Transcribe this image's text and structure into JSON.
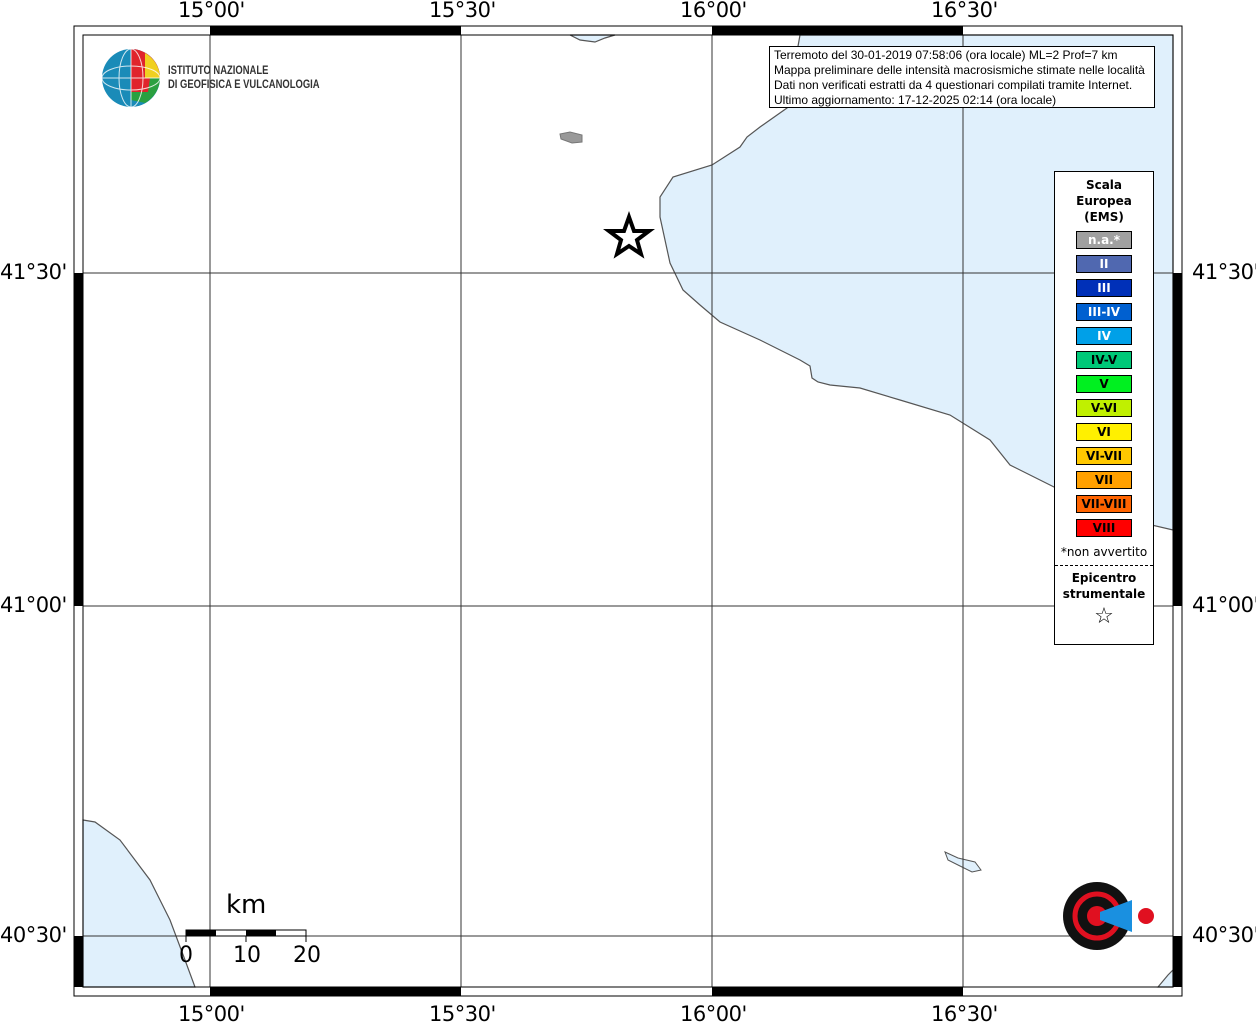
{
  "map": {
    "longitude_ticks": [
      "15°00'",
      "15°30'",
      "16°00'",
      "16°30'"
    ],
    "latitude_ticks": [
      "41°30'",
      "41°00'",
      "40°30'"
    ],
    "colors": {
      "sea": "#e0f0fc",
      "land": "#ffffff",
      "coastline": "#555555",
      "island": "#999999"
    },
    "epicenter_icon": "star-icon"
  },
  "info": {
    "line1": "Terremoto del 30-01-2019 07:58:06 (ora locale) ML=2 Prof=7 km",
    "line2": "Mappa preliminare delle intensità macrosismiche stimate nelle località",
    "line3": "Dati non verificati estratti da 4 questionari compilati tramite Internet.",
    "line4": "Ultimo aggiornamento: 17-12-2025 02:14 (ora locale)"
  },
  "logo": {
    "line1": "ISTITUTO NAZIONALE",
    "line2": "DI GEOFISICA E VULCANOLOGIA"
  },
  "hsit_logo": "www.haisentitoilterremoto.it",
  "legend": {
    "title1": "Scala",
    "title2": "Europea",
    "title3": "(EMS)",
    "items": [
      {
        "label": "n.a.*",
        "color": "#a0a0a0",
        "text": "#ffffff"
      },
      {
        "label": "II",
        "color": "#5068b0",
        "text": "#ffffff"
      },
      {
        "label": "III",
        "color": "#0030b8",
        "text": "#ffffff"
      },
      {
        "label": "III-IV",
        "color": "#0060d0",
        "text": "#ffffff"
      },
      {
        "label": "IV",
        "color": "#00a0e8",
        "text": "#ffffff"
      },
      {
        "label": "IV-V",
        "color": "#00c878",
        "text": "#000000"
      },
      {
        "label": "V",
        "color": "#00f020",
        "text": "#000000"
      },
      {
        "label": "V-VI",
        "color": "#c0f000",
        "text": "#000000"
      },
      {
        "label": "VI",
        "color": "#fff000",
        "text": "#000000"
      },
      {
        "label": "VI-VII",
        "color": "#ffc800",
        "text": "#000000"
      },
      {
        "label": "VII",
        "color": "#ffa000",
        "text": "#000000"
      },
      {
        "label": "VII-VIII",
        "color": "#ff6400",
        "text": "#000000"
      },
      {
        "label": "VIII",
        "color": "#ff0000",
        "text": "#000000"
      }
    ],
    "note": "*non avvertito",
    "epicenter1": "Epicentro",
    "epicenter2": "strumentale",
    "epicenter_symbol": "☆"
  },
  "scale_bar": {
    "unit": "km",
    "labels": [
      "0",
      "10",
      "20"
    ]
  }
}
